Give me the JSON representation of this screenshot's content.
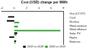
{
  "chart_data": {
    "type": "bar",
    "orientation": "horizontal",
    "title": "Cost (USD) change per MWh",
    "categories": [
      "Gas (CCGT)",
      "Coal",
      "Nuclear",
      "Wind onshore",
      "Wind offshore",
      "Solar PV",
      "Hydro",
      "Biomass"
    ],
    "series": [
      {
        "name": "2019 vs 2018",
        "color": "#111111",
        "values": [
          0,
          -1,
          -1.2,
          0,
          0,
          0.5,
          -0.8,
          0.3
        ]
      },
      {
        "name": "2020 vs 2019",
        "color": "#33a02c",
        "values": [
          0,
          0,
          0.8,
          0.6,
          7.5,
          0.4,
          0,
          0.2
        ]
      }
    ],
    "xlim": [
      -2,
      8
    ],
    "xticks": [
      -2,
      0,
      2,
      4,
      6,
      8
    ],
    "grid": false,
    "legend": "bottom"
  }
}
